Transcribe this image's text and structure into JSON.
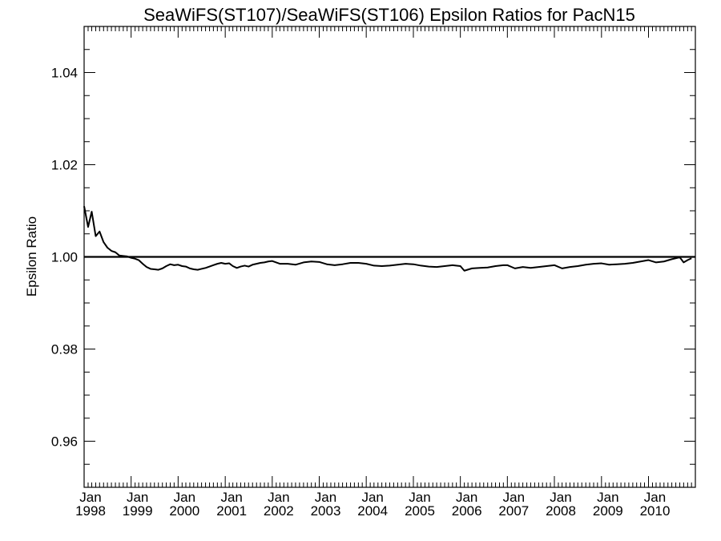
{
  "chart_data": {
    "type": "line",
    "title": "SeaWiFS(ST107)/SeaWiFS(ST106)  Epsilon Ratios for PacN15",
    "ylabel": "Epsilon Ratio",
    "xlabel": "",
    "xlim": [
      "1998-01-01",
      "2010-12-31"
    ],
    "ylim": [
      0.95,
      1.05
    ],
    "yticks": [
      {
        "value": 0.96,
        "label": "0.96"
      },
      {
        "value": 0.98,
        "label": "0.98"
      },
      {
        "value": 1.0,
        "label": "1.00"
      },
      {
        "value": 1.02,
        "label": "1.02"
      },
      {
        "value": 1.04,
        "label": "1.04"
      }
    ],
    "xticks": [
      {
        "date": "1998-01-01",
        "month": "Jan",
        "year": "1998"
      },
      {
        "date": "1999-01-01",
        "month": "Jan",
        "year": "1999"
      },
      {
        "date": "2000-01-01",
        "month": "Jan",
        "year": "2000"
      },
      {
        "date": "2001-01-01",
        "month": "Jan",
        "year": "2001"
      },
      {
        "date": "2002-01-01",
        "month": "Jan",
        "year": "2002"
      },
      {
        "date": "2003-01-01",
        "month": "Jan",
        "year": "2003"
      },
      {
        "date": "2004-01-01",
        "month": "Jan",
        "year": "2004"
      },
      {
        "date": "2005-01-01",
        "month": "Jan",
        "year": "2005"
      },
      {
        "date": "2006-01-01",
        "month": "Jan",
        "year": "2006"
      },
      {
        "date": "2007-01-01",
        "month": "Jan",
        "year": "2007"
      },
      {
        "date": "2008-01-01",
        "month": "Jan",
        "year": "2008"
      },
      {
        "date": "2009-01-01",
        "month": "Jan",
        "year": "2009"
      },
      {
        "date": "2010-01-01",
        "month": "Jan",
        "year": "2010"
      }
    ],
    "reference_line": 1.0,
    "grid": false,
    "series": [
      {
        "x": [
          "1998-01-01",
          "1998-02-01",
          "1998-03-01",
          "1998-04-01",
          "1998-05-01",
          "1998-06-01",
          "1998-07-01",
          "1998-08-01",
          "1998-09-01",
          "1998-10-01",
          "1998-11-01",
          "1998-12-01",
          "1999-01-01",
          "1999-02-01",
          "1999-03-01",
          "1999-04-01",
          "1999-05-01",
          "1999-06-01",
          "1999-07-01",
          "1999-08-01",
          "1999-09-01",
          "1999-10-01",
          "1999-11-01",
          "1999-12-01",
          "2000-01-01",
          "2000-02-01",
          "2000-03-01",
          "2000-04-01",
          "2000-05-01",
          "2000-06-01",
          "2000-07-01",
          "2000-08-01",
          "2000-09-01",
          "2000-10-01",
          "2000-11-01",
          "2000-12-01",
          "2001-01-01",
          "2001-02-01",
          "2001-03-01",
          "2001-04-01",
          "2001-05-01",
          "2001-06-01",
          "2001-07-01",
          "2001-08-01",
          "2001-09-01",
          "2001-10-01",
          "2001-11-01",
          "2001-12-01",
          "2002-01-01",
          "2002-03-01",
          "2002-05-01",
          "2002-07-01",
          "2002-09-01",
          "2002-11-01",
          "2003-01-01",
          "2003-03-01",
          "2003-05-01",
          "2003-07-01",
          "2003-09-01",
          "2003-11-01",
          "2004-01-01",
          "2004-03-01",
          "2004-05-01",
          "2004-07-01",
          "2004-09-01",
          "2004-11-01",
          "2005-01-01",
          "2005-03-01",
          "2005-05-01",
          "2005-07-01",
          "2005-09-01",
          "2005-11-01",
          "2006-01-01",
          "2006-02-01",
          "2006-04-01",
          "2006-06-01",
          "2006-08-01",
          "2006-10-01",
          "2006-12-01",
          "2007-01-01",
          "2007-03-01",
          "2007-05-01",
          "2007-07-01",
          "2007-09-01",
          "2007-11-01",
          "2008-01-01",
          "2008-03-01",
          "2008-05-01",
          "2008-07-01",
          "2008-09-01",
          "2008-11-01",
          "2009-01-01",
          "2009-03-01",
          "2009-05-01",
          "2009-07-01",
          "2009-09-01",
          "2009-11-01",
          "2010-01-01",
          "2010-03-01",
          "2010-05-01",
          "2010-07-01",
          "2010-09-01",
          "2010-10-01",
          "2010-11-01",
          "2010-12-01"
        ],
        "y": [
          1.011,
          1.0065,
          1.0098,
          1.0045,
          1.0055,
          1.0032,
          1.002,
          1.0013,
          1.001,
          1.0003,
          1.0002,
          1.0001,
          0.9998,
          0.9996,
          0.9993,
          0.9985,
          0.9978,
          0.9974,
          0.9973,
          0.9972,
          0.9975,
          0.998,
          0.9984,
          0.9982,
          0.9983,
          0.998,
          0.9979,
          0.9975,
          0.9973,
          0.9972,
          0.9974,
          0.9976,
          0.9979,
          0.9982,
          0.9985,
          0.9987,
          0.9985,
          0.9986,
          0.998,
          0.9976,
          0.9979,
          0.9981,
          0.9979,
          0.9983,
          0.9985,
          0.9987,
          0.9988,
          0.999,
          0.9991,
          0.9985,
          0.9985,
          0.9983,
          0.9988,
          0.999,
          0.9989,
          0.9984,
          0.9982,
          0.9984,
          0.9987,
          0.9987,
          0.9985,
          0.9981,
          0.998,
          0.9981,
          0.9983,
          0.9985,
          0.9984,
          0.9981,
          0.9979,
          0.9978,
          0.998,
          0.9982,
          0.998,
          0.997,
          0.9975,
          0.9976,
          0.9977,
          0.998,
          0.9982,
          0.9982,
          0.9975,
          0.9978,
          0.9976,
          0.9978,
          0.998,
          0.9982,
          0.9975,
          0.9978,
          0.998,
          0.9983,
          0.9985,
          0.9986,
          0.9983,
          0.9984,
          0.9985,
          0.9987,
          0.999,
          0.9993,
          0.9988,
          0.999,
          0.9995,
          0.9999,
          0.9988,
          0.9993,
          0.9997
        ]
      }
    ]
  }
}
